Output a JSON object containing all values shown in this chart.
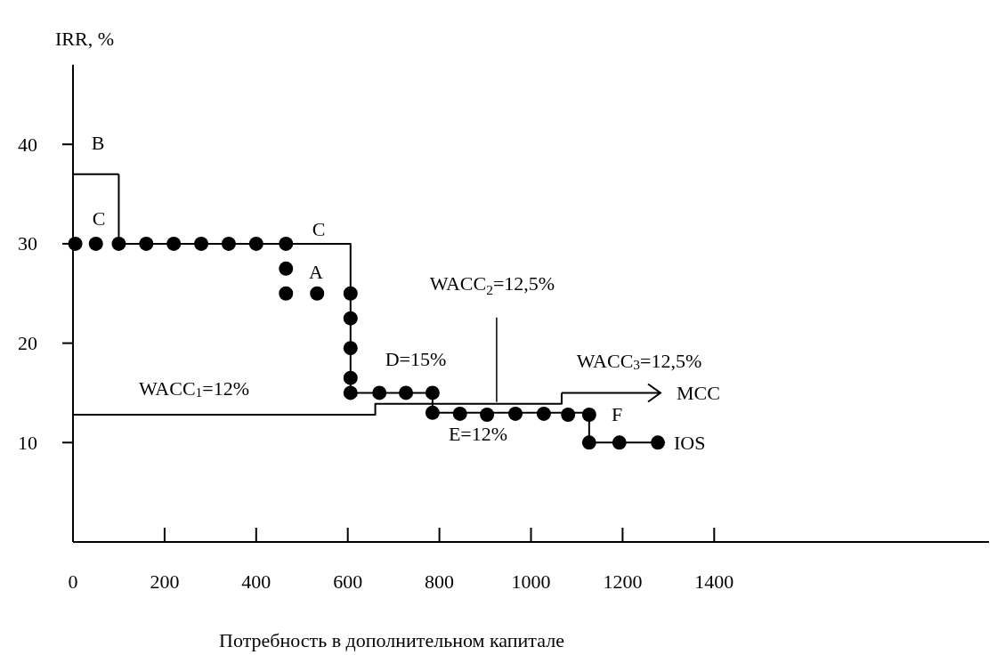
{
  "chart_data": {
    "type": "line",
    "xlabel": "Потребность в дополнительном капитале",
    "ylabel": "IRR, %",
    "xlim": [
      0,
      2000
    ],
    "ylim": [
      0,
      48
    ],
    "xticks": [
      0,
      200,
      400,
      600,
      800,
      1000,
      1200,
      1400
    ],
    "yticks": [
      10,
      20,
      30,
      40
    ],
    "series": [
      {
        "name": "IOS",
        "color": "#000000",
        "x": [
          100,
          100,
          606,
          606,
          785,
          785,
          1127,
          1127,
          1277
        ],
        "values": [
          37,
          30,
          30,
          15,
          15,
          13,
          13,
          10,
          10
        ]
      },
      {
        "color": "#000000",
        "x": [
          0,
          100
        ],
        "values": [
          37,
          37
        ]
      },
      {
        "name": "MCC",
        "color": "#000000",
        "x": [
          0,
          660,
          660,
          1067,
          1067
        ],
        "values": [
          12.8,
          12.8,
          13.9,
          13.9,
          15
        ]
      },
      {
        "type": "scatter",
        "color": "#000000",
        "x": [
          5,
          50,
          100,
          160,
          220,
          280,
          340,
          400,
          465,
          465,
          465,
          533,
          606,
          606,
          606,
          606,
          606,
          669,
          727,
          785,
          785,
          845,
          904,
          966,
          1028,
          1081,
          1127,
          1127,
          1193,
          1277
        ],
        "values": [
          30,
          30,
          30,
          30,
          30,
          30,
          30,
          30,
          30,
          27.5,
          25,
          25,
          25,
          22.5,
          19.5,
          16.5,
          15,
          15,
          15,
          15,
          13,
          12.9,
          12.8,
          12.9,
          12.9,
          12.8,
          12.8,
          10,
          10,
          10
        ]
      }
    ],
    "annotations": [
      "B",
      "C",
      "C",
      "A",
      "D=15%",
      "WACC$_{1}$=12%",
      {
        "text": "WACC$_{2}$=12,5%",
        "x": 925,
        "y": 13.9
      },
      "WACC$_{3}$=12,5%",
      "F",
      "E=12%"
    ]
  }
}
